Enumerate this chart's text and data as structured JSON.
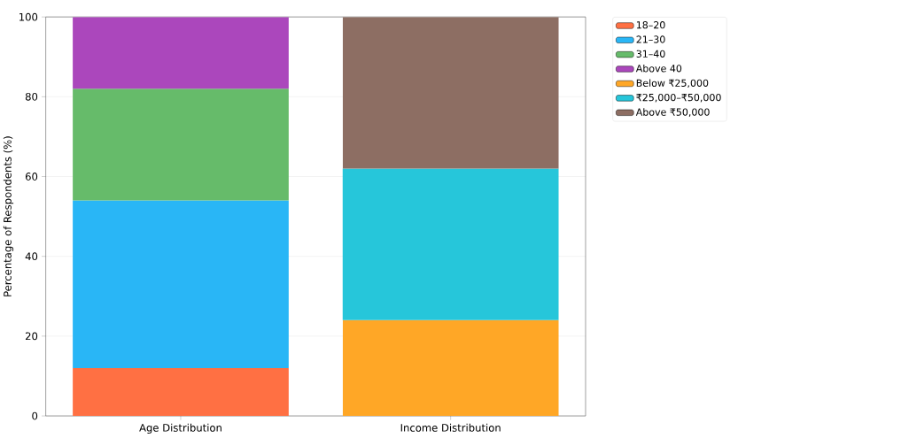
{
  "chart_data": {
    "type": "bar",
    "stacked": true,
    "ylabel": "Percentage of Respondents (%)",
    "categories": [
      "Age Distribution",
      "Income Distribution"
    ],
    "series": [
      {
        "name": "18–20",
        "color": "#ff7043",
        "values": [
          12,
          null
        ]
      },
      {
        "name": "21–30",
        "color": "#29b6f6",
        "values": [
          42,
          null
        ]
      },
      {
        "name": "31–40",
        "color": "#66bb6a",
        "values": [
          28,
          null
        ]
      },
      {
        "name": "Above 40",
        "color": "#ab47bc",
        "values": [
          18,
          null
        ]
      },
      {
        "name": "Below ₹25,000",
        "color": "#ffa726",
        "values": [
          null,
          24
        ]
      },
      {
        "name": "₹25,000–₹50,000",
        "color": "#26c6da",
        "values": [
          null,
          38
        ]
      },
      {
        "name": "Above ₹50,000",
        "color": "#8d6e63",
        "values": [
          null,
          38
        ]
      }
    ],
    "ylim": [
      0,
      100
    ],
    "yticks": [
      0,
      20,
      40,
      60,
      80,
      100
    ],
    "grid": "y",
    "legend": "top right"
  }
}
